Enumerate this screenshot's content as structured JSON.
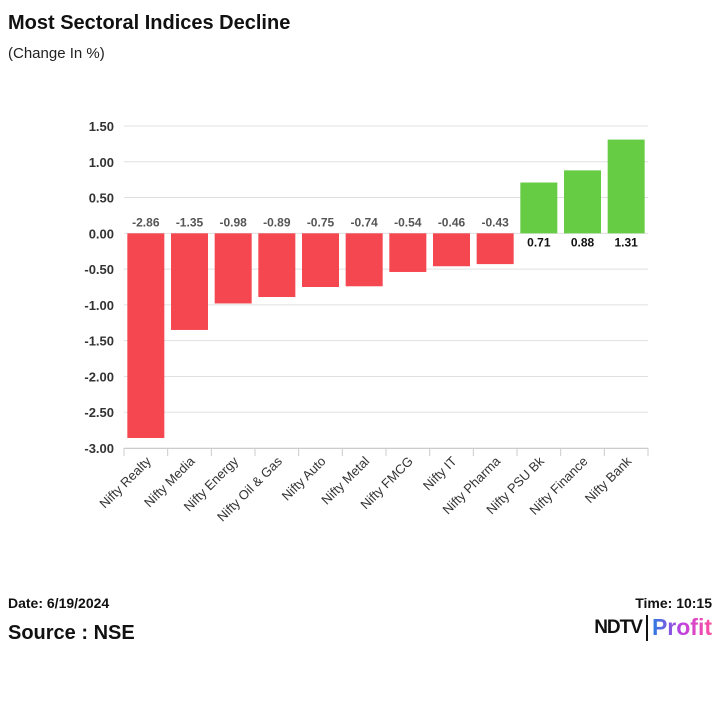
{
  "title": "Most Sectoral Indices Decline",
  "subtitle": "(Change In %)",
  "footer": {
    "date": "Date: 6/19/2024",
    "time": "Time: 10:15",
    "source": "Source : NSE",
    "logo_ndtv": "NDTV",
    "logo_profit": "Profit"
  },
  "colors": {
    "negative": "#f5474f",
    "positive": "#66cc44"
  },
  "chart_data": {
    "type": "bar",
    "title": "Most Sectoral Indices Decline",
    "ylabel": "(Change In %)",
    "categories": [
      "Nifty Realty",
      "Nifty Media",
      "Nifty Energy",
      "Nifty Oil & Gas",
      "Nifty Auto",
      "Nifty Metal",
      "Nifty FMCG",
      "Nifty IT",
      "Nifty Pharma",
      "Nifty PSU Bk",
      "Nifty Finance",
      "Nifty Bank"
    ],
    "values": [
      -2.86,
      -1.35,
      -0.98,
      -0.89,
      -0.75,
      -0.74,
      -0.54,
      -0.46,
      -0.43,
      0.71,
      0.88,
      1.31
    ],
    "ylim": [
      -3.0,
      1.5
    ],
    "yticks": [
      "1.50",
      "1.00",
      "0.50",
      "0.00",
      "-0.50",
      "-1.00",
      "-1.50",
      "-2.00",
      "-2.50",
      "-3.00"
    ],
    "grid": true
  }
}
